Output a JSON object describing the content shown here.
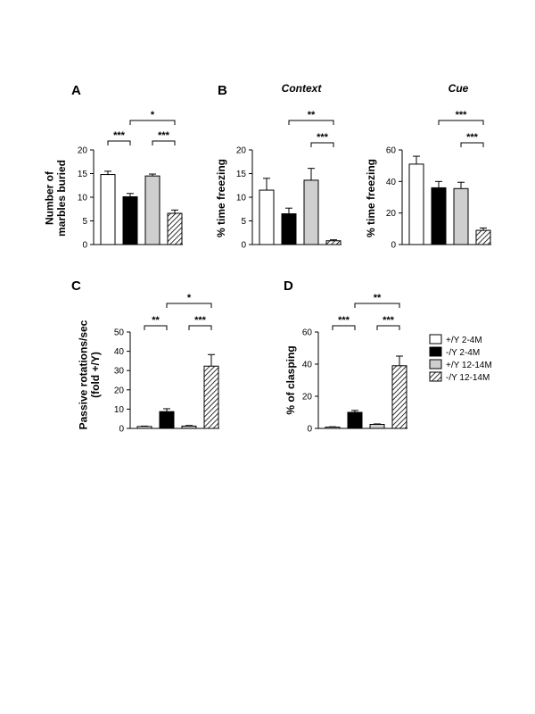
{
  "figure": {
    "legend": [
      {
        "label": "+/Y 2-4M",
        "fill": "white"
      },
      {
        "label": "-/Y 2-4M",
        "fill": "black"
      },
      {
        "label": "+/Y 12-14M",
        "fill": "gray"
      },
      {
        "label": "-/Y 12-14M",
        "fill": "hatch"
      }
    ],
    "colors": {
      "white": "#ffffff",
      "black": "#000000",
      "gray": "#cfcfcf",
      "hatch_stroke": "#000000"
    }
  },
  "chart_data": [
    {
      "id": "A",
      "type": "bar",
      "panel_letter": "A",
      "title": "",
      "ylabel_lines": [
        "Number of",
        "marbles buried"
      ],
      "categories": [
        "+/Y 2-4M",
        "-/Y 2-4M",
        "+/Y 12-14M",
        "-/Y 12-14M"
      ],
      "values": [
        14.8,
        10.1,
        14.5,
        6.6
      ],
      "errors": [
        0.7,
        0.7,
        0.4,
        0.7
      ],
      "ylim": [
        0,
        20
      ],
      "yticks": [
        0,
        5,
        10,
        15,
        20
      ],
      "significance": [
        {
          "from": 0,
          "to": 1,
          "label": "***"
        },
        {
          "from": 2,
          "to": 3,
          "label": "***"
        },
        {
          "from": 1,
          "to": 3,
          "label": "*"
        }
      ]
    },
    {
      "id": "B1",
      "type": "bar",
      "panel_letter": "B",
      "title": "Context",
      "ylabel_lines": [
        "% time freezing"
      ],
      "categories": [
        "+/Y 2-4M",
        "-/Y 2-4M",
        "+/Y 12-14M",
        "-/Y 12-14M"
      ],
      "values": [
        11.5,
        6.5,
        13.6,
        0.8
      ],
      "errors": [
        2.5,
        1.2,
        2.5,
        0.2
      ],
      "ylim": [
        0,
        20
      ],
      "yticks": [
        0,
        5,
        10,
        15,
        20
      ],
      "significance": [
        {
          "from": 2,
          "to": 3,
          "label": "***"
        },
        {
          "from": 1,
          "to": 3,
          "label": "**"
        }
      ]
    },
    {
      "id": "B2",
      "type": "bar",
      "panel_letter": "",
      "title": "Cue",
      "ylabel_lines": [
        "% time freezing"
      ],
      "categories": [
        "+/Y 2-4M",
        "-/Y 2-4M",
        "+/Y 12-14M",
        "-/Y 12-14M"
      ],
      "values": [
        51,
        36,
        35.5,
        9
      ],
      "errors": [
        5,
        4,
        4,
        1.5
      ],
      "ylim": [
        0,
        60
      ],
      "yticks": [
        0,
        20,
        40,
        60
      ],
      "significance": [
        {
          "from": 2,
          "to": 3,
          "label": "***"
        },
        {
          "from": 1,
          "to": 3,
          "label": "***"
        }
      ]
    },
    {
      "id": "C",
      "type": "bar",
      "panel_letter": "C",
      "title": "",
      "ylabel_lines": [
        "Passive rotations/sec",
        "(fold +/Y)"
      ],
      "categories": [
        "+/Y 2-4M",
        "-/Y 2-4M",
        "+/Y 12-14M",
        "-/Y 12-14M"
      ],
      "values": [
        1,
        8.7,
        1.2,
        32.3
      ],
      "errors": [
        0.2,
        1.5,
        0.3,
        6
      ],
      "ylim": [
        0,
        50
      ],
      "yticks": [
        0,
        10,
        20,
        30,
        40,
        50
      ],
      "significance": [
        {
          "from": 0,
          "to": 1,
          "label": "**"
        },
        {
          "from": 2,
          "to": 3,
          "label": "***"
        },
        {
          "from": 1,
          "to": 3,
          "label": "*"
        }
      ]
    },
    {
      "id": "D",
      "type": "bar",
      "panel_letter": "D",
      "title": "",
      "ylabel_lines": [
        "% of clasping"
      ],
      "categories": [
        "+/Y 2-4M",
        "-/Y 2-4M",
        "+/Y 12-14M",
        "-/Y 12-14M"
      ],
      "values": [
        0.8,
        10,
        2.5,
        39
      ],
      "errors": [
        0.2,
        1.2,
        0.3,
        6
      ],
      "ylim": [
        0,
        60
      ],
      "yticks": [
        0,
        20,
        40,
        60
      ],
      "significance": [
        {
          "from": 0,
          "to": 1,
          "label": "***"
        },
        {
          "from": 2,
          "to": 3,
          "label": "***"
        },
        {
          "from": 1,
          "to": 3,
          "label": "**"
        }
      ]
    }
  ]
}
